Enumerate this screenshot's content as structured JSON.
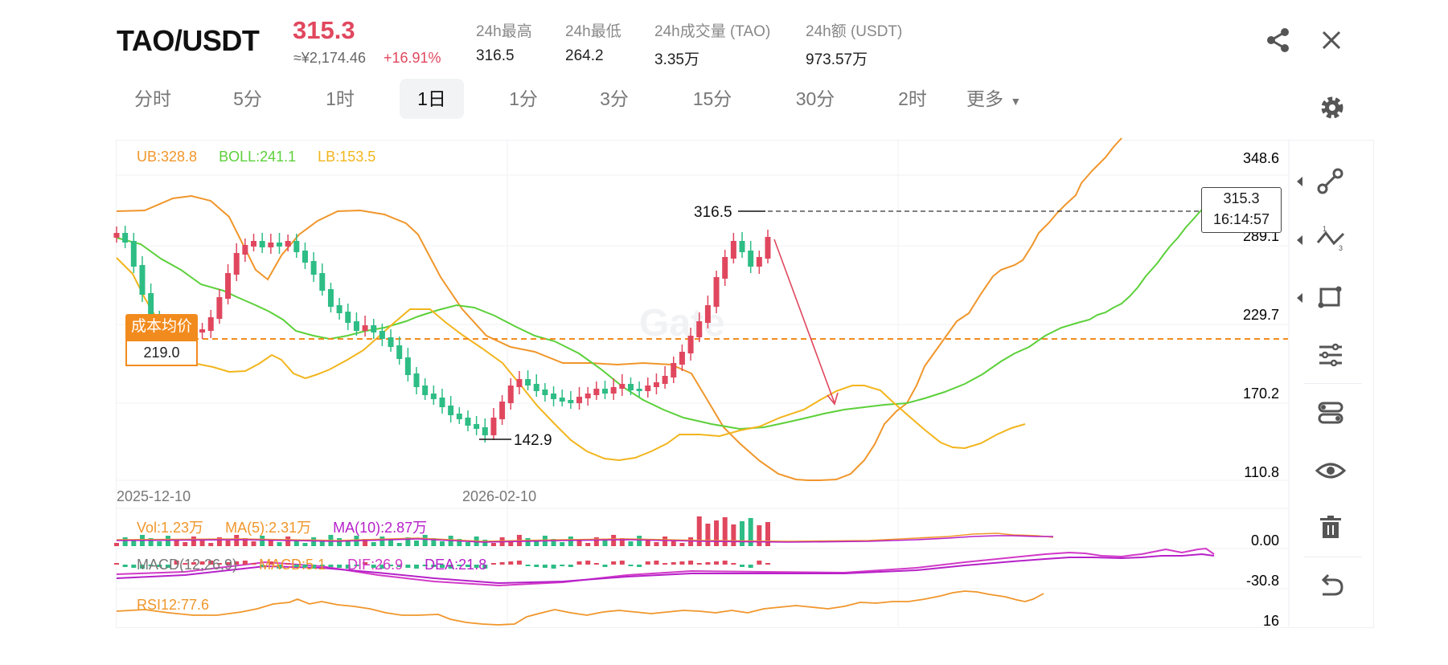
{
  "header": {
    "pair": "TAO/USDT",
    "price": "315.3",
    "cny_price": "≈¥2,174.46",
    "change": "+16.91%",
    "stats": [
      {
        "label": "24h最高",
        "value": "316.5"
      },
      {
        "label": "24h最低",
        "value": "264.2"
      },
      {
        "label": "24h成交量 (TAO)",
        "value": "3.35万"
      },
      {
        "label": "24h额 (USDT)",
        "value": "973.57万"
      }
    ]
  },
  "tabs": [
    "分时",
    "5分",
    "1时",
    "1日",
    "1分",
    "3分",
    "15分",
    "30分",
    "2时",
    "更多"
  ],
  "active_tab": "1日",
  "chart": {
    "bollinger_legend": {
      "ub": "UB:328.8",
      "boll": "BOLL:241.1",
      "lb": "LB:153.5"
    },
    "y_axis_labels": [
      "348.6",
      "289.1",
      "229.7",
      "170.2",
      "110.8"
    ],
    "x_axis_labels": [
      "2025-12-10",
      "2026-02-10"
    ],
    "high_marker": "316.5",
    "low_marker": "142.9",
    "cost_label": "成本均价",
    "cost_value": "219.0",
    "current_price_box": {
      "price": "315.3",
      "time": "16:14:57"
    },
    "watermark": "Gate",
    "volume_legend": {
      "vol": "Vol:1.23万",
      "ma5": "MA(5):2.31万",
      "ma10": "MA(10):2.87万"
    },
    "macd_legend": {
      "macd": "MACD(12,26,9)",
      "macd_val": "MACD:5.1",
      "dif": "DIF:26.9",
      "dea": "DEA:21.8"
    },
    "rsi_legend": "RSI12:77.6",
    "sub_axis_labels": [
      "0.00",
      "-30.8",
      "16"
    ]
  },
  "chart_data": {
    "type": "candlestick",
    "series": [
      {
        "name": "UB",
        "value": 328.8
      },
      {
        "name": "BOLL",
        "value": 241.1
      },
      {
        "name": "LB",
        "value": 153.5
      }
    ],
    "ylim": [
      110.8,
      348.6
    ],
    "x_ticks": [
      "2025-12-10",
      "2026-02-10"
    ],
    "period_high": 316.5,
    "period_low": 142.9,
    "cost_average": 219.0,
    "last_price": 315.3
  },
  "colors": {
    "up": "#e0475e",
    "down": "#2dbd85",
    "ub": "#f0962b",
    "boll": "#5cd03a",
    "lb": "#f2b51d",
    "cost": "#f28b1e",
    "ma10": "#b620c9",
    "dea": "#d23ac8"
  },
  "icons": {
    "share": "share-icon",
    "close": "close-icon",
    "settings": "gear-icon",
    "tools": [
      "trendline-icon",
      "polyline-icon",
      "rectangle-icon",
      "sliders-icon",
      "toggle-icon",
      "eye-icon",
      "trash-icon",
      "undo-icon"
    ]
  }
}
